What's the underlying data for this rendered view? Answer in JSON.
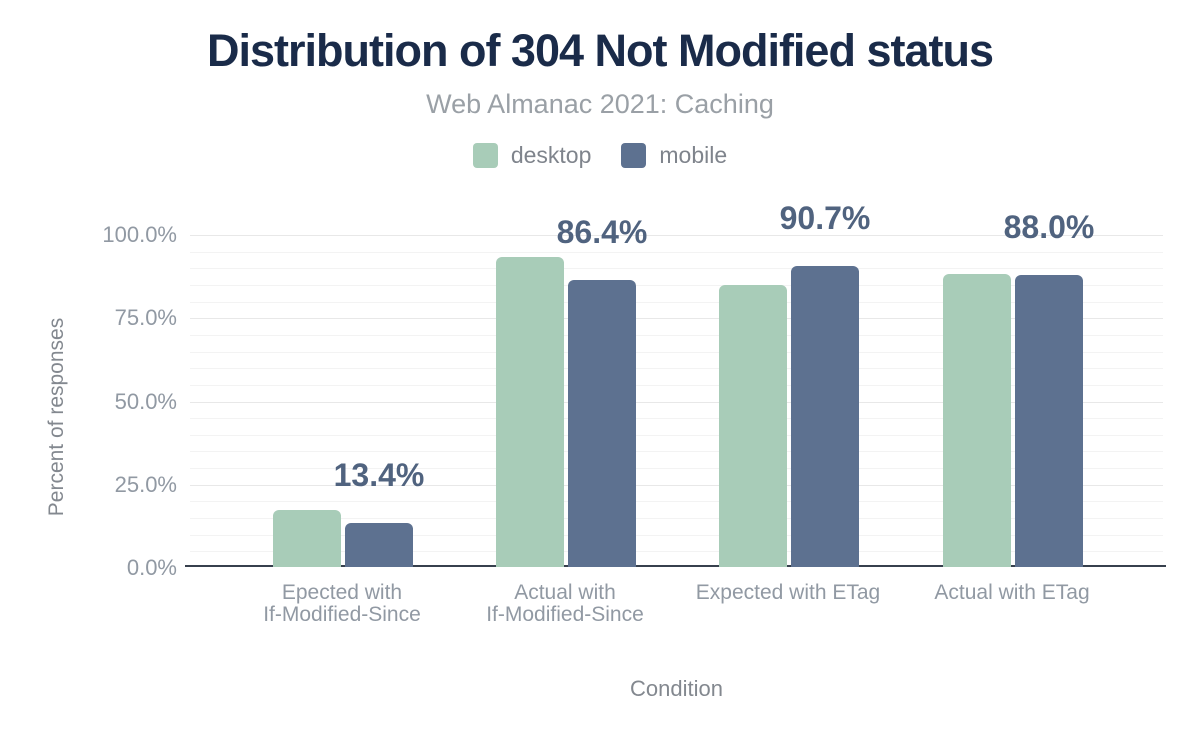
{
  "chart_data": {
    "type": "bar",
    "title": "Distribution of 304 Not Modified status",
    "subtitle": "Web Almanac 2021: Caching",
    "xlabel": "Condition",
    "ylabel": "Percent of responses",
    "categories": [
      "Epected with If-Modified-Since",
      "Actual with If-Modified-Since",
      "Expected with ETag",
      "Actual with ETag"
    ],
    "categories_lines": [
      [
        "Epected with",
        "If-Modified-Since"
      ],
      [
        "Actual with",
        "If-Modified-Since"
      ],
      [
        "Expected with ETag"
      ],
      [
        "Actual with ETag"
      ]
    ],
    "series": [
      {
        "name": "desktop",
        "color": "#a8ccb8",
        "values": [
          17.4,
          93.4,
          85.0,
          88.3
        ]
      },
      {
        "name": "mobile",
        "color": "#5d7190",
        "values": [
          13.4,
          86.4,
          90.7,
          88.0
        ]
      }
    ],
    "bar_labels": [
      "13.4%",
      "86.4%",
      "90.7%",
      "88.0%"
    ],
    "bar_labels_series": "mobile",
    "y_ticks": [
      {
        "value": 0,
        "label": "0.0%"
      },
      {
        "value": 25,
        "label": "25.0%"
      },
      {
        "value": 50,
        "label": "50.0%"
      },
      {
        "value": 75,
        "label": "75.0%"
      },
      {
        "value": 100,
        "label": "100.0%"
      }
    ],
    "ylim": [
      0,
      100
    ],
    "grid": {
      "minor_step": 5,
      "major_step": 25,
      "orientation": "horizontal"
    },
    "legend_position": "top"
  },
  "colors": {
    "background": "#ffffff",
    "title": "#1a2b49",
    "subtitle": "#9aa0a6",
    "legend_text": "#7f848c",
    "axis_text": "#9199a3",
    "axis_title_text": "#83888f",
    "data_label": "#50637f",
    "axis_line": "#37404d",
    "grid_major": "#e8e8e8",
    "grid_minor": "#f3f3f3",
    "desktop": "#a8ccb8",
    "mobile": "#5d7190"
  }
}
